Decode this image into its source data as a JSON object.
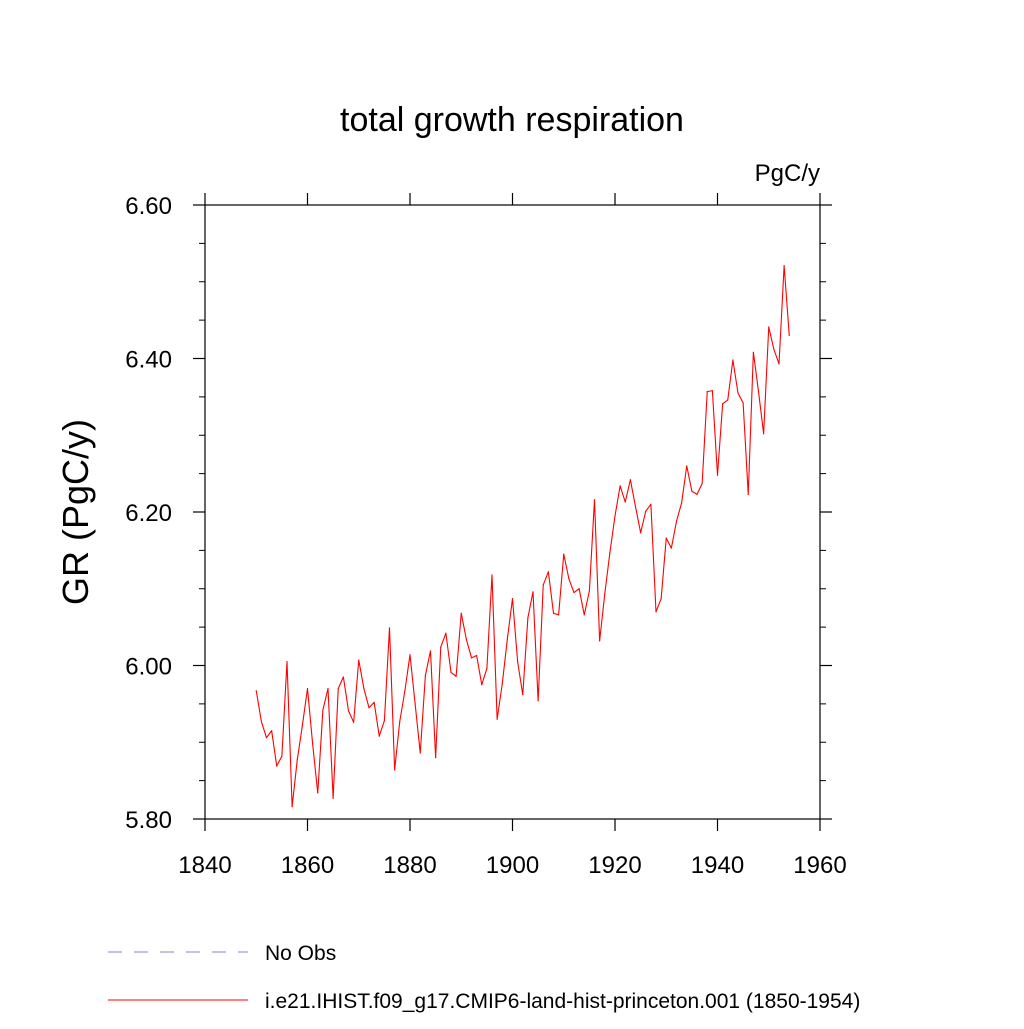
{
  "chart_data": {
    "type": "line",
    "title": "total growth respiration",
    "units_label": "PgC/y",
    "ylabel": "GR  (PgC/y)",
    "xlabel": "",
    "xlim": [
      1840,
      1960
    ],
    "ylim": [
      5.8,
      6.6
    ],
    "x_ticks": [
      1840,
      1860,
      1880,
      1900,
      1920,
      1940,
      1960
    ],
    "x_tick_labels": [
      "1840",
      "1860",
      "1880",
      "1900",
      "1920",
      "1940",
      "1960"
    ],
    "y_ticks": [
      5.8,
      6.0,
      6.2,
      6.4,
      6.6
    ],
    "y_tick_labels": [
      "5.80",
      "6.00",
      "6.20",
      "6.40",
      "6.60"
    ],
    "grid": false,
    "legend_position": "bottom",
    "series": [
      {
        "name": "i.e21.IHIST.f09_g17.CMIP6-land-hist-princeton.001 (1850-1954)",
        "color": "#ff0000",
        "style": "solid",
        "x": [
          1850,
          1851,
          1852,
          1853,
          1854,
          1855,
          1856,
          1857,
          1858,
          1859,
          1860,
          1861,
          1862,
          1863,
          1864,
          1865,
          1866,
          1867,
          1868,
          1869,
          1870,
          1871,
          1872,
          1873,
          1874,
          1875,
          1876,
          1877,
          1878,
          1879,
          1880,
          1881,
          1882,
          1883,
          1884,
          1885,
          1886,
          1887,
          1888,
          1889,
          1890,
          1891,
          1892,
          1893,
          1894,
          1895,
          1896,
          1897,
          1898,
          1899,
          1900,
          1901,
          1902,
          1903,
          1904,
          1905,
          1906,
          1907,
          1908,
          1909,
          1910,
          1911,
          1912,
          1913,
          1914,
          1915,
          1916,
          1917,
          1918,
          1919,
          1920,
          1921,
          1922,
          1923,
          1924,
          1925,
          1926,
          1927,
          1928,
          1929,
          1930,
          1931,
          1932,
          1933,
          1934,
          1935,
          1936,
          1937,
          1938,
          1939,
          1940,
          1941,
          1942,
          1943,
          1944,
          1945,
          1946,
          1947,
          1948,
          1949,
          1950,
          1951,
          1952,
          1953,
          1954
        ],
        "values": [
          5.967,
          5.927,
          5.906,
          5.915,
          5.869,
          5.882,
          6.005,
          5.816,
          5.877,
          5.922,
          5.97,
          5.898,
          5.834,
          5.942,
          5.97,
          5.827,
          5.97,
          5.985,
          5.941,
          5.926,
          6.007,
          5.97,
          5.945,
          5.952,
          5.908,
          5.928,
          6.049,
          5.864,
          5.927,
          5.967,
          6.014,
          5.95,
          5.886,
          5.987,
          6.019,
          5.88,
          6.024,
          6.042,
          5.991,
          5.986,
          6.068,
          6.034,
          6.01,
          6.013,
          5.975,
          5.996,
          6.118,
          5.93,
          5.976,
          6.035,
          6.087,
          6.005,
          5.962,
          6.062,
          6.096,
          5.954,
          6.105,
          6.122,
          6.068,
          6.066,
          6.145,
          6.113,
          6.095,
          6.1,
          6.066,
          6.097,
          6.216,
          6.032,
          6.093,
          6.147,
          6.195,
          6.234,
          6.213,
          6.242,
          6.207,
          6.173,
          6.201,
          6.21,
          6.07,
          6.087,
          6.166,
          6.153,
          6.188,
          6.212,
          6.26,
          6.227,
          6.223,
          6.237,
          6.357,
          6.358,
          6.248,
          6.341,
          6.346,
          6.398,
          6.355,
          6.342,
          6.223,
          6.408,
          6.357,
          6.302,
          6.441,
          6.412,
          6.393,
          6.521,
          6.43
        ]
      },
      {
        "name": "No Obs",
        "color": "#8a7fd0",
        "style": "dashed",
        "x": [],
        "values": []
      }
    ]
  }
}
